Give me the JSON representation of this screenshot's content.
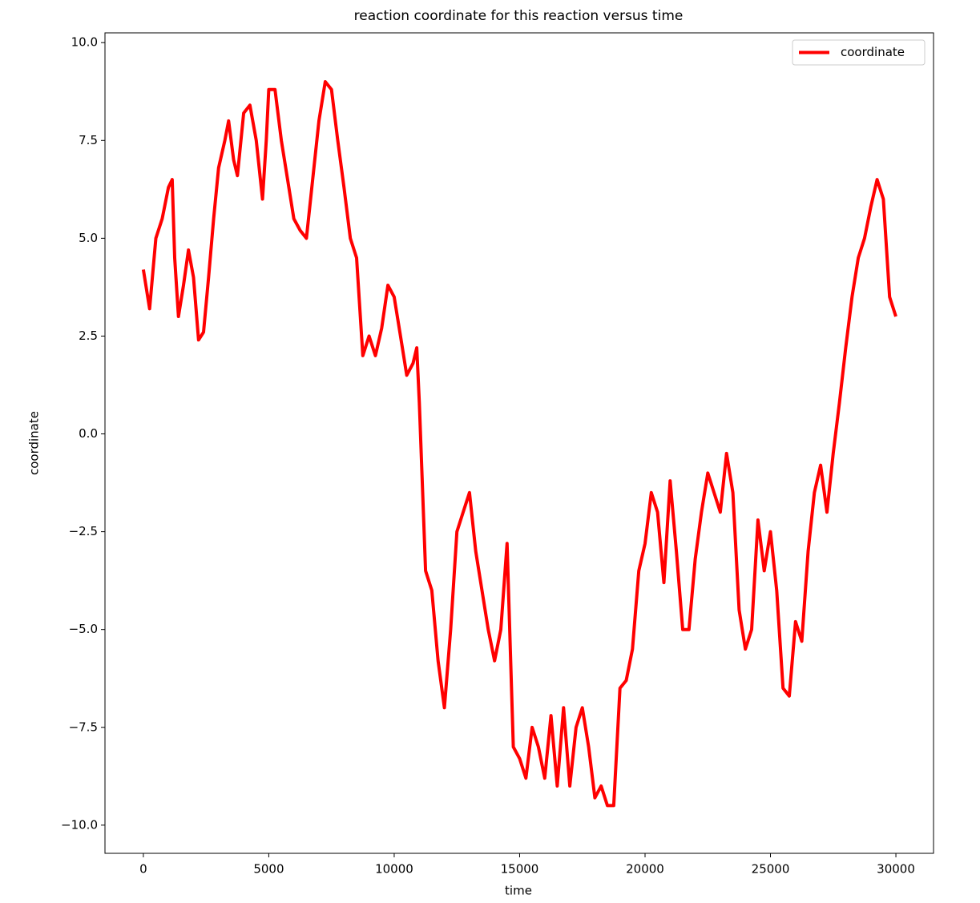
{
  "chart_data": {
    "type": "line",
    "title": "reaction coordinate for this reaction versus time",
    "x_label": "time",
    "y_label": "coordinate",
    "x": [
      0,
      250,
      500,
      750,
      1000,
      1150,
      1250,
      1400,
      1600,
      1800,
      2000,
      2200,
      2400,
      2600,
      2800,
      3000,
      3250,
      3400,
      3600,
      3750,
      4000,
      4250,
      4500,
      4750,
      4900,
      5000,
      5250,
      5500,
      5750,
      6000,
      6250,
      6500,
      6750,
      7000,
      7250,
      7500,
      7750,
      8000,
      8250,
      8500,
      8750,
      9000,
      9250,
      9500,
      9750,
      10000,
      10250,
      10500,
      10750,
      10900,
      11000,
      11250,
      11500,
      11750,
      12000,
      12250,
      12500,
      12750,
      13000,
      13250,
      13500,
      13750,
      14000,
      14250,
      14500,
      14750,
      15000,
      15250,
      15500,
      15750,
      16000,
      16250,
      16500,
      16750,
      17000,
      17250,
      17500,
      17750,
      18000,
      18250,
      18500,
      18750,
      19000,
      19250,
      19500,
      19750,
      20000,
      20250,
      20500,
      20750,
      21000,
      21250,
      21500,
      21750,
      22000,
      22250,
      22500,
      22750,
      23000,
      23250,
      23500,
      23750,
      24000,
      24250,
      24500,
      24750,
      25000,
      25250,
      25500,
      25750,
      26000,
      26250,
      26500,
      26750,
      27000,
      27250,
      27500,
      27750,
      28000,
      28250,
      28500,
      28750,
      29000,
      29250,
      29500,
      29750,
      30000
    ],
    "series": [
      {
        "name": "coordinate",
        "color": "#ff0000",
        "values": [
          4.2,
          3.2,
          5.0,
          5.5,
          6.3,
          6.5,
          4.5,
          3.0,
          3.8,
          4.7,
          4.0,
          2.4,
          2.6,
          4.0,
          5.5,
          6.8,
          7.5,
          8.0,
          7.0,
          6.6,
          8.2,
          8.4,
          7.5,
          6.0,
          7.5,
          8.8,
          8.8,
          7.5,
          6.5,
          5.5,
          5.2,
          5.0,
          6.5,
          8.0,
          9.0,
          8.8,
          7.5,
          6.3,
          5.0,
          4.5,
          2.0,
          2.5,
          2.0,
          2.7,
          3.8,
          3.5,
          2.5,
          1.5,
          1.8,
          2.2,
          0.8,
          -3.5,
          -4.0,
          -5.8,
          -7.0,
          -5.0,
          -2.5,
          -2.0,
          -1.5,
          -3.0,
          -4.0,
          -5.0,
          -5.8,
          -5.0,
          -2.8,
          -8.0,
          -8.3,
          -8.8,
          -7.5,
          -8.0,
          -8.8,
          -7.2,
          -9.0,
          -7.0,
          -9.0,
          -7.5,
          -7.0,
          -8.0,
          -9.3,
          -9.0,
          -9.5,
          -9.5,
          -6.5,
          -6.3,
          -5.5,
          -3.5,
          -2.8,
          -1.5,
          -2.0,
          -3.8,
          -1.2,
          -3.0,
          -5.0,
          -5.0,
          -3.2,
          -2.0,
          -1.0,
          -1.5,
          -2.0,
          -0.5,
          -1.5,
          -4.5,
          -5.5,
          -5.0,
          -2.2,
          -3.5,
          -2.5,
          -4.0,
          -6.5,
          -6.7,
          -4.8,
          -5.3,
          -3.0,
          -1.5,
          -0.8,
          -2.0,
          -0.5,
          0.8,
          2.2,
          3.5,
          4.5,
          5.0,
          5.8,
          6.5,
          6.0,
          3.5,
          3.0
        ]
      }
    ],
    "xlim": [
      -1530,
      31500
    ],
    "ylim": [
      -10.72,
      10.25
    ],
    "xticks": [
      0,
      5000,
      10000,
      15000,
      20000,
      25000,
      30000
    ],
    "yticks": [
      {
        "value": 10,
        "label": "10.0"
      },
      {
        "value": 7.5,
        "label": "7.5"
      },
      {
        "value": 5,
        "label": "5.0"
      },
      {
        "value": 2.5,
        "label": "2.5"
      },
      {
        "value": 0,
        "label": "0.0"
      },
      {
        "value": -2.5,
        "label": "−2.5"
      },
      {
        "value": -5,
        "label": "−5.0"
      },
      {
        "value": -7.5,
        "label": "−7.5"
      },
      {
        "value": -10,
        "label": "−10.0"
      }
    ],
    "legend": "upper right",
    "grid": false
  }
}
